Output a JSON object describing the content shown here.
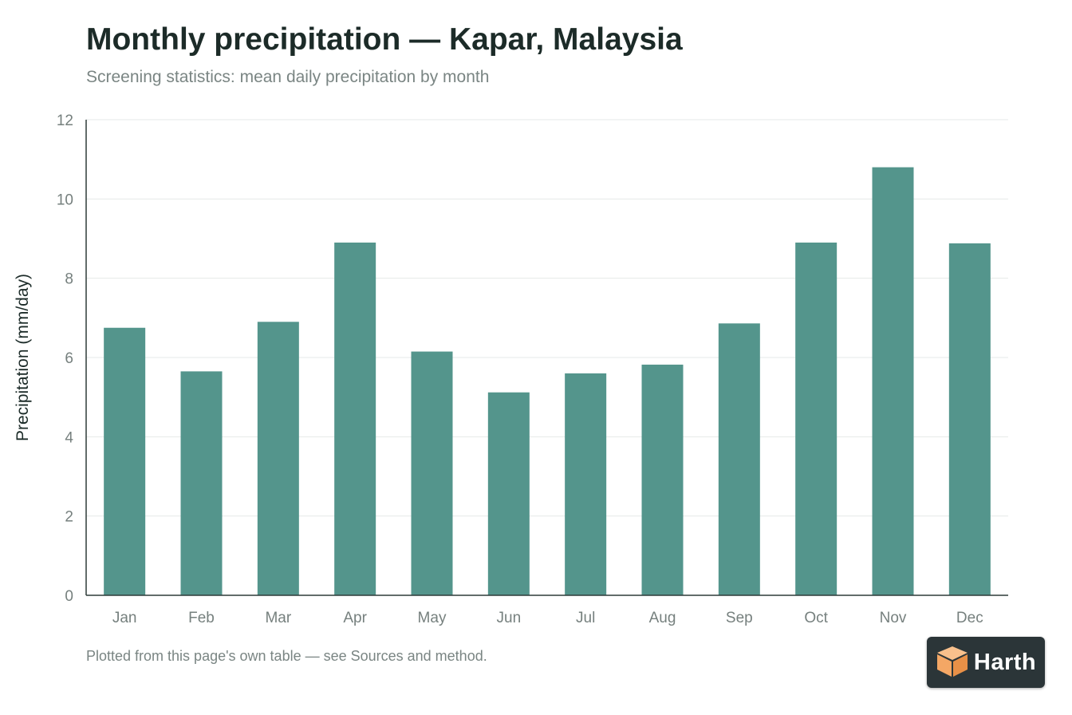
{
  "header": {
    "title": "Monthly precipitation — Kapar, Malaysia",
    "subtitle": "Screening statistics: mean daily precipitation by month"
  },
  "footnote": "Plotted from this page's own table — see Sources and method.",
  "brand": {
    "name": "Harth",
    "icon": "cube-logo-icon"
  },
  "colors": {
    "bar": "#54958c",
    "grid": "#e6e9e8",
    "axis": "#2f3b39",
    "tick_text": "#76807e",
    "axis_title": "#1c2b28",
    "logo_left": "#f4a765",
    "logo_right": "#e89047"
  },
  "chart_data": {
    "type": "bar",
    "categories": [
      "Jan",
      "Feb",
      "Mar",
      "Apr",
      "May",
      "Jun",
      "Jul",
      "Aug",
      "Sep",
      "Oct",
      "Nov",
      "Dec"
    ],
    "values": [
      6.75,
      5.65,
      6.9,
      8.9,
      6.15,
      5.12,
      5.6,
      5.82,
      6.86,
      8.9,
      10.8,
      8.88
    ],
    "title": "Monthly precipitation — Kapar, Malaysia",
    "subtitle": "Screening statistics: mean daily precipitation by month",
    "xlabel": "",
    "ylabel": "Precipitation (mm/day)",
    "ylim": [
      0,
      12
    ],
    "yticks": [
      0,
      2,
      4,
      6,
      8,
      10,
      12
    ],
    "grid": true,
    "legend": "none"
  }
}
